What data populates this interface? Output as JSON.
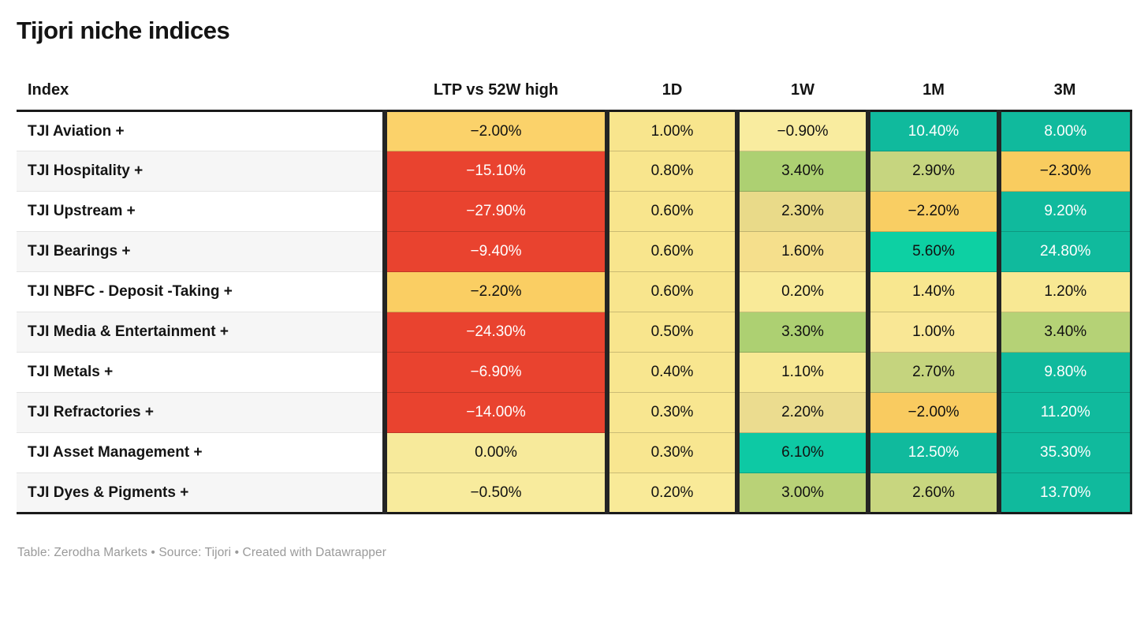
{
  "title": "Tijori niche indices",
  "footer": "Table: Zerodha Markets • Source: Tijori • Created with Datawrapper",
  "colors": {
    "negative_strong": "#E9432F",
    "negative_mild": "#F9CC5F",
    "neutral_yellow": "#F8E58D",
    "positive_mild": "#ADD072",
    "positive_strong_light": "#0DD0A3",
    "positive_strong_dark": "#10BA9D",
    "text_dark": "#111111",
    "text_light": "#ffffff",
    "border_dark": "#242424",
    "row_alt": "#f6f6f6"
  },
  "chart_data": {
    "type": "table",
    "title": "Tijori niche indices",
    "columns": [
      "Index",
      "LTP vs 52W high",
      "1D",
      "1W",
      "1M",
      "3M"
    ],
    "rows": [
      {
        "index": "TJI Aviation +",
        "cells": [
          {
            "v": "−2.00%",
            "n": -2.0,
            "bg": "#FBD26A",
            "fg": "#111111"
          },
          {
            "v": "1.00%",
            "n": 1.0,
            "bg": "#F8E58D",
            "fg": "#111111"
          },
          {
            "v": "−0.90%",
            "n": -0.9,
            "bg": "#F9EC9F",
            "fg": "#111111"
          },
          {
            "v": "10.40%",
            "n": 10.4,
            "bg": "#10BA9D",
            "fg": "#ffffff"
          },
          {
            "v": "8.00%",
            "n": 8.0,
            "bg": "#10BA9D",
            "fg": "#ffffff"
          }
        ]
      },
      {
        "index": "TJI Hospitality +",
        "cells": [
          {
            "v": "−15.10%",
            "n": -15.1,
            "bg": "#E9432F",
            "fg": "#ffffff"
          },
          {
            "v": "0.80%",
            "n": 0.8,
            "bg": "#F8E58D",
            "fg": "#111111"
          },
          {
            "v": "3.40%",
            "n": 3.4,
            "bg": "#ADD072",
            "fg": "#111111"
          },
          {
            "v": "2.90%",
            "n": 2.9,
            "bg": "#C6D57F",
            "fg": "#111111"
          },
          {
            "v": "−2.30%",
            "n": -2.3,
            "bg": "#F9CC5F",
            "fg": "#111111"
          }
        ]
      },
      {
        "index": "TJI Upstream +",
        "cells": [
          {
            "v": "−27.90%",
            "n": -27.9,
            "bg": "#E9432F",
            "fg": "#ffffff"
          },
          {
            "v": "0.60%",
            "n": 0.6,
            "bg": "#F8E58D",
            "fg": "#111111"
          },
          {
            "v": "2.30%",
            "n": 2.3,
            "bg": "#E9DA89",
            "fg": "#111111"
          },
          {
            "v": "−2.20%",
            "n": -2.2,
            "bg": "#F9CE63",
            "fg": "#111111"
          },
          {
            "v": "9.20%",
            "n": 9.2,
            "bg": "#10BA9D",
            "fg": "#ffffff"
          }
        ]
      },
      {
        "index": "TJI Bearings +",
        "cells": [
          {
            "v": "−9.40%",
            "n": -9.4,
            "bg": "#E9432F",
            "fg": "#ffffff"
          },
          {
            "v": "0.60%",
            "n": 0.6,
            "bg": "#F8E58D",
            "fg": "#111111"
          },
          {
            "v": "1.60%",
            "n": 1.6,
            "bg": "#F5DF8C",
            "fg": "#111111"
          },
          {
            "v": "5.60%",
            "n": 5.6,
            "bg": "#0DD0A3",
            "fg": "#111111"
          },
          {
            "v": "24.80%",
            "n": 24.8,
            "bg": "#10BA9D",
            "fg": "#ffffff"
          }
        ]
      },
      {
        "index": "TJI NBFC - Deposit -Taking +",
        "cells": [
          {
            "v": "−2.20%",
            "n": -2.2,
            "bg": "#FACE63",
            "fg": "#111111"
          },
          {
            "v": "0.60%",
            "n": 0.6,
            "bg": "#F8E58D",
            "fg": "#111111"
          },
          {
            "v": "0.20%",
            "n": 0.2,
            "bg": "#F9EA98",
            "fg": "#111111"
          },
          {
            "v": "1.40%",
            "n": 1.4,
            "bg": "#F8E78F",
            "fg": "#111111"
          },
          {
            "v": "1.20%",
            "n": 1.2,
            "bg": "#F8E893",
            "fg": "#111111"
          }
        ]
      },
      {
        "index": "TJI Media & Entertainment +",
        "cells": [
          {
            "v": "−24.30%",
            "n": -24.3,
            "bg": "#E9432F",
            "fg": "#ffffff"
          },
          {
            "v": "0.50%",
            "n": 0.5,
            "bg": "#F8E58D",
            "fg": "#111111"
          },
          {
            "v": "3.30%",
            "n": 3.3,
            "bg": "#ADD072",
            "fg": "#111111"
          },
          {
            "v": "1.00%",
            "n": 1.0,
            "bg": "#F9E795",
            "fg": "#111111"
          },
          {
            "v": "3.40%",
            "n": 3.4,
            "bg": "#B5D276",
            "fg": "#111111"
          }
        ]
      },
      {
        "index": "TJI Metals +",
        "cells": [
          {
            "v": "−6.90%",
            "n": -6.9,
            "bg": "#E9432F",
            "fg": "#ffffff"
          },
          {
            "v": "0.40%",
            "n": 0.4,
            "bg": "#F8E68F",
            "fg": "#111111"
          },
          {
            "v": "1.10%",
            "n": 1.1,
            "bg": "#F8E894",
            "fg": "#111111"
          },
          {
            "v": "2.70%",
            "n": 2.7,
            "bg": "#C5D47E",
            "fg": "#111111"
          },
          {
            "v": "9.80%",
            "n": 9.8,
            "bg": "#10BA9D",
            "fg": "#ffffff"
          }
        ]
      },
      {
        "index": "TJI Refractories +",
        "cells": [
          {
            "v": "−14.00%",
            "n": -14.0,
            "bg": "#E9432F",
            "fg": "#ffffff"
          },
          {
            "v": "0.30%",
            "n": 0.3,
            "bg": "#F8E690",
            "fg": "#111111"
          },
          {
            "v": "2.20%",
            "n": 2.2,
            "bg": "#EBDC8F",
            "fg": "#111111"
          },
          {
            "v": "−2.00%",
            "n": -2.0,
            "bg": "#F9CB60",
            "fg": "#111111"
          },
          {
            "v": "11.20%",
            "n": 11.2,
            "bg": "#10BA9D",
            "fg": "#ffffff"
          }
        ]
      },
      {
        "index": "TJI Asset Management +",
        "cells": [
          {
            "v": "0.00%",
            "n": 0.0,
            "bg": "#F7EA9B",
            "fg": "#111111"
          },
          {
            "v": "0.30%",
            "n": 0.3,
            "bg": "#F8E690",
            "fg": "#111111"
          },
          {
            "v": "6.10%",
            "n": 6.1,
            "bg": "#0DC9A4",
            "fg": "#111111"
          },
          {
            "v": "12.50%",
            "n": 12.5,
            "bg": "#10BA9D",
            "fg": "#ffffff"
          },
          {
            "v": "35.30%",
            "n": 35.3,
            "bg": "#10BA9D",
            "fg": "#ffffff"
          }
        ]
      },
      {
        "index": "TJI Dyes & Pigments +",
        "cells": [
          {
            "v": "−0.50%",
            "n": -0.5,
            "bg": "#F8EB9D",
            "fg": "#111111"
          },
          {
            "v": "0.20%",
            "n": 0.2,
            "bg": "#F9EA98",
            "fg": "#111111"
          },
          {
            "v": "3.00%",
            "n": 3.0,
            "bg": "#B9D277",
            "fg": "#111111"
          },
          {
            "v": "2.60%",
            "n": 2.6,
            "bg": "#C8D67F",
            "fg": "#111111"
          },
          {
            "v": "13.70%",
            "n": 13.7,
            "bg": "#10BA9D",
            "fg": "#ffffff"
          }
        ]
      }
    ],
    "notes": "Table: Zerodha Markets • Source: Tijori • Created with Datawrapper"
  }
}
